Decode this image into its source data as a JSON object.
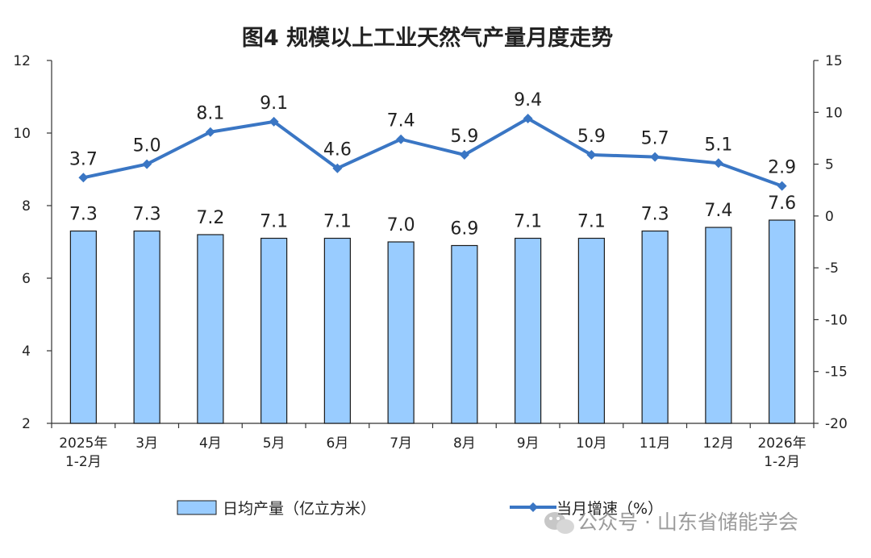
{
  "chart_data": {
    "type": "bar",
    "title": "图4  规模以上工业天然气产量月度走势",
    "categories": [
      [
        "2025年",
        "1-2月"
      ],
      [
        "3月"
      ],
      [
        "4月"
      ],
      [
        "5月"
      ],
      [
        "6月"
      ],
      [
        "7月"
      ],
      [
        "8月"
      ],
      [
        "9月"
      ],
      [
        "10月"
      ],
      [
        "11月"
      ],
      [
        "12月"
      ],
      [
        "2026年",
        "1-2月"
      ]
    ],
    "series": [
      {
        "name": "日均产量（亿立方米）",
        "type": "bar",
        "axis": "left",
        "color": "#99CCFF",
        "values": [
          7.3,
          7.3,
          7.2,
          7.1,
          7.1,
          7.0,
          6.9,
          7.1,
          7.1,
          7.3,
          7.4,
          7.6
        ],
        "labels": [
          "7.3",
          "7.3",
          "7.2",
          "7.1",
          "7.1",
          "7.0",
          "6.9",
          "7.1",
          "7.1",
          "7.3",
          "7.4",
          "7.6"
        ]
      },
      {
        "name": "当月增速（%）",
        "type": "line",
        "axis": "right",
        "color": "#3A76C4",
        "values": [
          3.7,
          5.0,
          8.1,
          9.1,
          4.6,
          7.4,
          5.9,
          9.4,
          5.9,
          5.7,
          5.1,
          2.9
        ],
        "labels": [
          "3.7",
          "5.0",
          "8.1",
          "9.1",
          "4.6",
          "7.4",
          "5.9",
          "9.4",
          "5.9",
          "5.7",
          "5.1",
          "2.9"
        ]
      }
    ],
    "y_left": {
      "ylim": [
        2,
        12
      ],
      "ticks": [
        "2",
        "4",
        "6",
        "8",
        "10",
        "12"
      ]
    },
    "y_right": {
      "ylim": [
        -20,
        15
      ],
      "ticks": [
        "-20",
        "-15",
        "-10",
        "-5",
        "0",
        "5",
        "10",
        "15"
      ]
    },
    "legend_position": "bottom",
    "grid": false
  },
  "watermark": {
    "text": "公众号 · 山东省储能学会"
  }
}
